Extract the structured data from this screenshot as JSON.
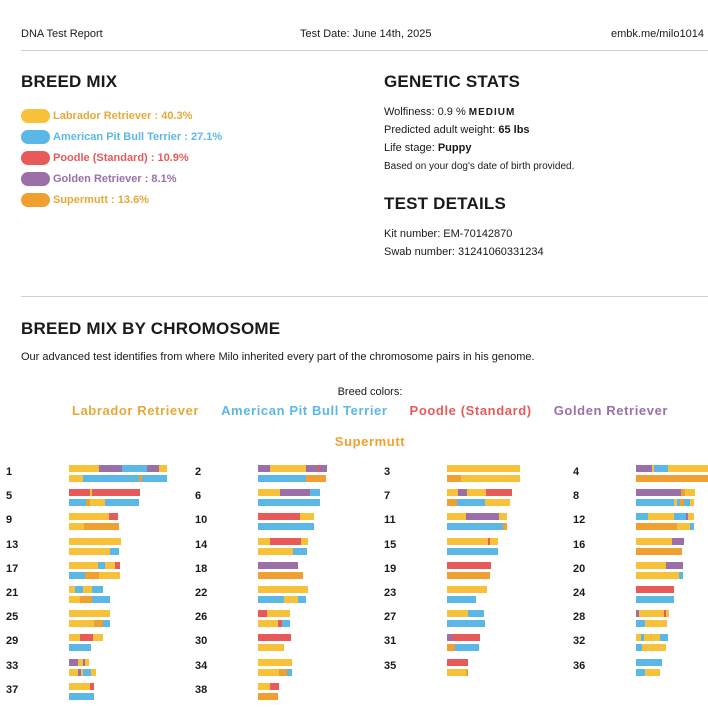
{
  "header": {
    "title": "DNA Test Report",
    "date": "Test Date: June 14th, 2025",
    "url": "embk.me/milo1014"
  },
  "breed_mix": {
    "heading": "BREED MIX",
    "items": [
      {
        "label": "Labrador Retriever : 40.3%",
        "color": "#f7c23a",
        "pct": 40.3
      },
      {
        "label": "American Pit Bull Terrier : 27.1%",
        "color": "#5bb8e6",
        "pct": 27.1
      },
      {
        "label": "Poodle (Standard) : 10.9%",
        "color": "#e85a5a",
        "pct": 10.9
      },
      {
        "label": "Golden Retriever : 8.1%",
        "color": "#9b6fa8",
        "pct": 8.1
      },
      {
        "label": "Supermutt : 13.6%",
        "color": "#f0a030",
        "pct": 13.6
      }
    ]
  },
  "genetic_stats": {
    "heading": "GENETIC STATS",
    "wolfiness_label": "Wolfiness: 0.9 % ",
    "wolfiness_level": "MEDIUM",
    "weight_label": "Predicted adult weight: ",
    "weight_value": "65 lbs",
    "life_stage_label": "Life stage: ",
    "life_stage_value": "Puppy",
    "note": "Based on your dog's date of birth provided."
  },
  "test_details": {
    "heading": "TEST DETAILS",
    "kit": "Kit number: EM-70142870",
    "swab": "Swab number: 31241060331234"
  },
  "chromosome_section": {
    "heading": "BREED MIX BY CHROMOSOME",
    "intro": "Our advanced test identifies from where Milo inherited every part of the chromosome pairs in his genome.",
    "colors_label": "Breed colors:",
    "breed_names": [
      "Labrador Retriever",
      "American Pit Bull Terrier",
      "Poodle (Standard)",
      "Golden Retriever",
      "Supermutt"
    ]
  },
  "colors": {
    "L": "#f7c23a",
    "A": "#5bb8e6",
    "P": "#e85a5a",
    "G": "#9b6fa8",
    "S": "#f0a030"
  },
  "chromosomes": [
    {
      "n": "1",
      "top": [
        [
          "L",
          30
        ],
        [
          "G",
          23
        ],
        [
          "A",
          25
        ],
        [
          "G",
          12
        ],
        [
          "L",
          8
        ]
      ],
      "bot": [
        [
          "L",
          14
        ],
        [
          "A",
          56
        ],
        [
          "S",
          3
        ],
        [
          "A",
          25
        ]
      ]
    },
    {
      "n": "2",
      "top": [
        [
          "G",
          12
        ],
        [
          "L",
          36
        ],
        [
          "G",
          12
        ],
        [
          "P",
          2
        ],
        [
          "G",
          7
        ]
      ],
      "bot": [
        [
          "A",
          48
        ],
        [
          "S",
          20
        ]
      ]
    },
    {
      "n": "3",
      "top": [
        [
          "L",
          73
        ]
      ],
      "bot": [
        [
          "S",
          14
        ],
        [
          "L",
          59
        ]
      ]
    },
    {
      "n": "4",
      "top": [
        [
          "G",
          16
        ],
        [
          "L",
          2
        ],
        [
          "A",
          14
        ],
        [
          "L",
          40
        ]
      ],
      "bot": [
        [
          "S",
          72
        ]
      ]
    },
    {
      "n": "5",
      "top": [
        [
          "P",
          21
        ],
        [
          "L",
          2
        ],
        [
          "P",
          48
        ]
      ],
      "bot": [
        [
          "A",
          17
        ],
        [
          "S",
          4
        ],
        [
          "L",
          15
        ],
        [
          "A",
          34
        ]
      ]
    },
    {
      "n": "6",
      "top": [
        [
          "L",
          22
        ],
        [
          "G",
          30
        ],
        [
          "A",
          10
        ]
      ],
      "bot": [
        [
          "A",
          62
        ]
      ]
    },
    {
      "n": "7",
      "top": [
        [
          "L",
          11
        ],
        [
          "G",
          9
        ],
        [
          "L",
          19
        ],
        [
          "P",
          26
        ]
      ],
      "bot": [
        [
          "S",
          10
        ],
        [
          "A",
          28
        ],
        [
          "L",
          25
        ]
      ]
    },
    {
      "n": "8",
      "top": [
        [
          "G",
          45
        ],
        [
          "S",
          4
        ],
        [
          "L",
          10
        ]
      ],
      "bot": [
        [
          "A",
          38
        ],
        [
          "L",
          3
        ],
        [
          "A",
          3
        ],
        [
          "S",
          4
        ],
        [
          "A",
          6
        ],
        [
          "L",
          4
        ]
      ]
    },
    {
      "n": "9",
      "top": [
        [
          "L",
          40
        ],
        [
          "P",
          9
        ]
      ],
      "bot": [
        [
          "L",
          15
        ],
        [
          "S",
          35
        ]
      ]
    },
    {
      "n": "10",
      "top": [
        [
          "P",
          42
        ],
        [
          "L",
          14
        ]
      ],
      "bot": [
        [
          "A",
          56
        ]
      ]
    },
    {
      "n": "11",
      "top": [
        [
          "L",
          19
        ],
        [
          "G",
          33
        ],
        [
          "L",
          8
        ]
      ],
      "bot": [
        [
          "A",
          56
        ],
        [
          "S",
          4
        ]
      ]
    },
    {
      "n": "12",
      "top": [
        [
          "A",
          12
        ],
        [
          "L",
          26
        ],
        [
          "A",
          12
        ],
        [
          "G",
          2
        ],
        [
          "L",
          6
        ]
      ],
      "bot": [
        [
          "S",
          41
        ],
        [
          "L",
          13
        ],
        [
          "A",
          4
        ]
      ]
    },
    {
      "n": "13",
      "top": [
        [
          "L",
          52
        ]
      ],
      "bot": [
        [
          "L",
          41
        ],
        [
          "A",
          9
        ]
      ]
    },
    {
      "n": "14",
      "top": [
        [
          "L",
          12
        ],
        [
          "P",
          31
        ],
        [
          "L",
          7
        ]
      ],
      "bot": [
        [
          "L",
          35
        ],
        [
          "A",
          14
        ]
      ]
    },
    {
      "n": "15",
      "top": [
        [
          "L",
          41
        ],
        [
          "P",
          2
        ],
        [
          "L",
          8
        ]
      ],
      "bot": [
        [
          "A",
          51
        ]
      ]
    },
    {
      "n": "16",
      "top": [
        [
          "L",
          36
        ],
        [
          "G",
          12
        ]
      ],
      "bot": [
        [
          "S",
          46
        ]
      ]
    },
    {
      "n": "17",
      "top": [
        [
          "L",
          29
        ],
        [
          "A",
          7
        ],
        [
          "L",
          10
        ],
        [
          "P",
          5
        ]
      ],
      "bot": [
        [
          "A",
          16
        ],
        [
          "S",
          14
        ],
        [
          "L",
          21
        ]
      ]
    },
    {
      "n": "18",
      "top": [
        [
          "G",
          40
        ]
      ],
      "bot": [
        [
          "S",
          45
        ]
      ]
    },
    {
      "n": "19",
      "top": [
        [
          "P",
          44
        ]
      ],
      "bot": [
        [
          "S",
          43
        ]
      ]
    },
    {
      "n": "20",
      "top": [
        [
          "L",
          30
        ],
        [
          "G",
          17
        ]
      ],
      "bot": [
        [
          "L",
          43
        ],
        [
          "A",
          4
        ]
      ]
    },
    {
      "n": "21",
      "top": [
        [
          "L",
          6
        ],
        [
          "A",
          8
        ],
        [
          "L",
          9
        ],
        [
          "A",
          11
        ]
      ],
      "bot": [
        [
          "L",
          11
        ],
        [
          "S",
          12
        ],
        [
          "A",
          18
        ]
      ]
    },
    {
      "n": "22",
      "top": [
        [
          "L",
          50
        ]
      ],
      "bot": [
        [
          "A",
          26
        ],
        [
          "L",
          14
        ],
        [
          "A",
          8
        ]
      ]
    },
    {
      "n": "23",
      "top": [
        [
          "L",
          40
        ]
      ],
      "bot": [
        [
          "A",
          29
        ]
      ]
    },
    {
      "n": "24",
      "top": [
        [
          "P",
          38
        ]
      ],
      "bot": [
        [
          "A",
          38
        ]
      ]
    },
    {
      "n": "25",
      "top": [
        [
          "L",
          41
        ]
      ],
      "bot": [
        [
          "L",
          25
        ],
        [
          "S",
          9
        ],
        [
          "A",
          7
        ]
      ]
    },
    {
      "n": "26",
      "top": [
        [
          "P",
          9
        ],
        [
          "L",
          23
        ]
      ],
      "bot": [
        [
          "L",
          20
        ],
        [
          "P",
          4
        ],
        [
          "A",
          8
        ]
      ]
    },
    {
      "n": "27",
      "top": [
        [
          "L",
          21
        ],
        [
          "A",
          16
        ]
      ],
      "bot": [
        [
          "A",
          38
        ]
      ]
    },
    {
      "n": "28",
      "top": [
        [
          "G",
          3
        ],
        [
          "L",
          25
        ],
        [
          "P",
          2
        ],
        [
          "L",
          3
        ]
      ],
      "bot": [
        [
          "A",
          9
        ],
        [
          "L",
          22
        ]
      ]
    },
    {
      "n": "29",
      "top": [
        [
          "L",
          11
        ],
        [
          "P",
          13
        ],
        [
          "L",
          10
        ]
      ],
      "bot": [
        [
          "A",
          22
        ]
      ]
    },
    {
      "n": "30",
      "top": [
        [
          "P",
          33
        ]
      ],
      "bot": [
        [
          "L",
          26
        ]
      ]
    },
    {
      "n": "31",
      "top": [
        [
          "G",
          5
        ],
        [
          "P",
          28
        ]
      ],
      "bot": [
        [
          "S",
          8
        ],
        [
          "A",
          24
        ]
      ]
    },
    {
      "n": "32",
      "top": [
        [
          "L",
          5
        ],
        [
          "A",
          3
        ],
        [
          "L",
          16
        ],
        [
          "A",
          8
        ]
      ],
      "bot": [
        [
          "A",
          6
        ],
        [
          "L",
          24
        ]
      ]
    },
    {
      "n": "33",
      "top": [
        [
          "G",
          9
        ],
        [
          "L",
          5
        ],
        [
          "G",
          2
        ],
        [
          "L",
          4
        ]
      ],
      "bot": [
        [
          "L",
          9
        ],
        [
          "G",
          3
        ],
        [
          "L",
          2
        ],
        [
          "A",
          8
        ],
        [
          "L",
          5
        ]
      ]
    },
    {
      "n": "34",
      "top": [
        [
          "L",
          34
        ]
      ],
      "bot": [
        [
          "L",
          21
        ],
        [
          "S",
          8
        ],
        [
          "A",
          5
        ]
      ]
    },
    {
      "n": "35",
      "top": [
        [
          "P",
          21
        ]
      ],
      "bot": [
        [
          "L",
          19
        ],
        [
          "S",
          2
        ]
      ]
    },
    {
      "n": "36",
      "top": [
        [
          "A",
          26
        ]
      ],
      "bot": [
        [
          "A",
          9
        ],
        [
          "L",
          15
        ]
      ]
    },
    {
      "n": "37",
      "top": [
        [
          "L",
          21
        ],
        [
          "P",
          4
        ]
      ],
      "bot": [
        [
          "A",
          25
        ]
      ]
    },
    {
      "n": "38",
      "top": [
        [
          "L",
          12
        ],
        [
          "P",
          9
        ]
      ],
      "bot": [
        [
          "S",
          20
        ]
      ]
    }
  ]
}
